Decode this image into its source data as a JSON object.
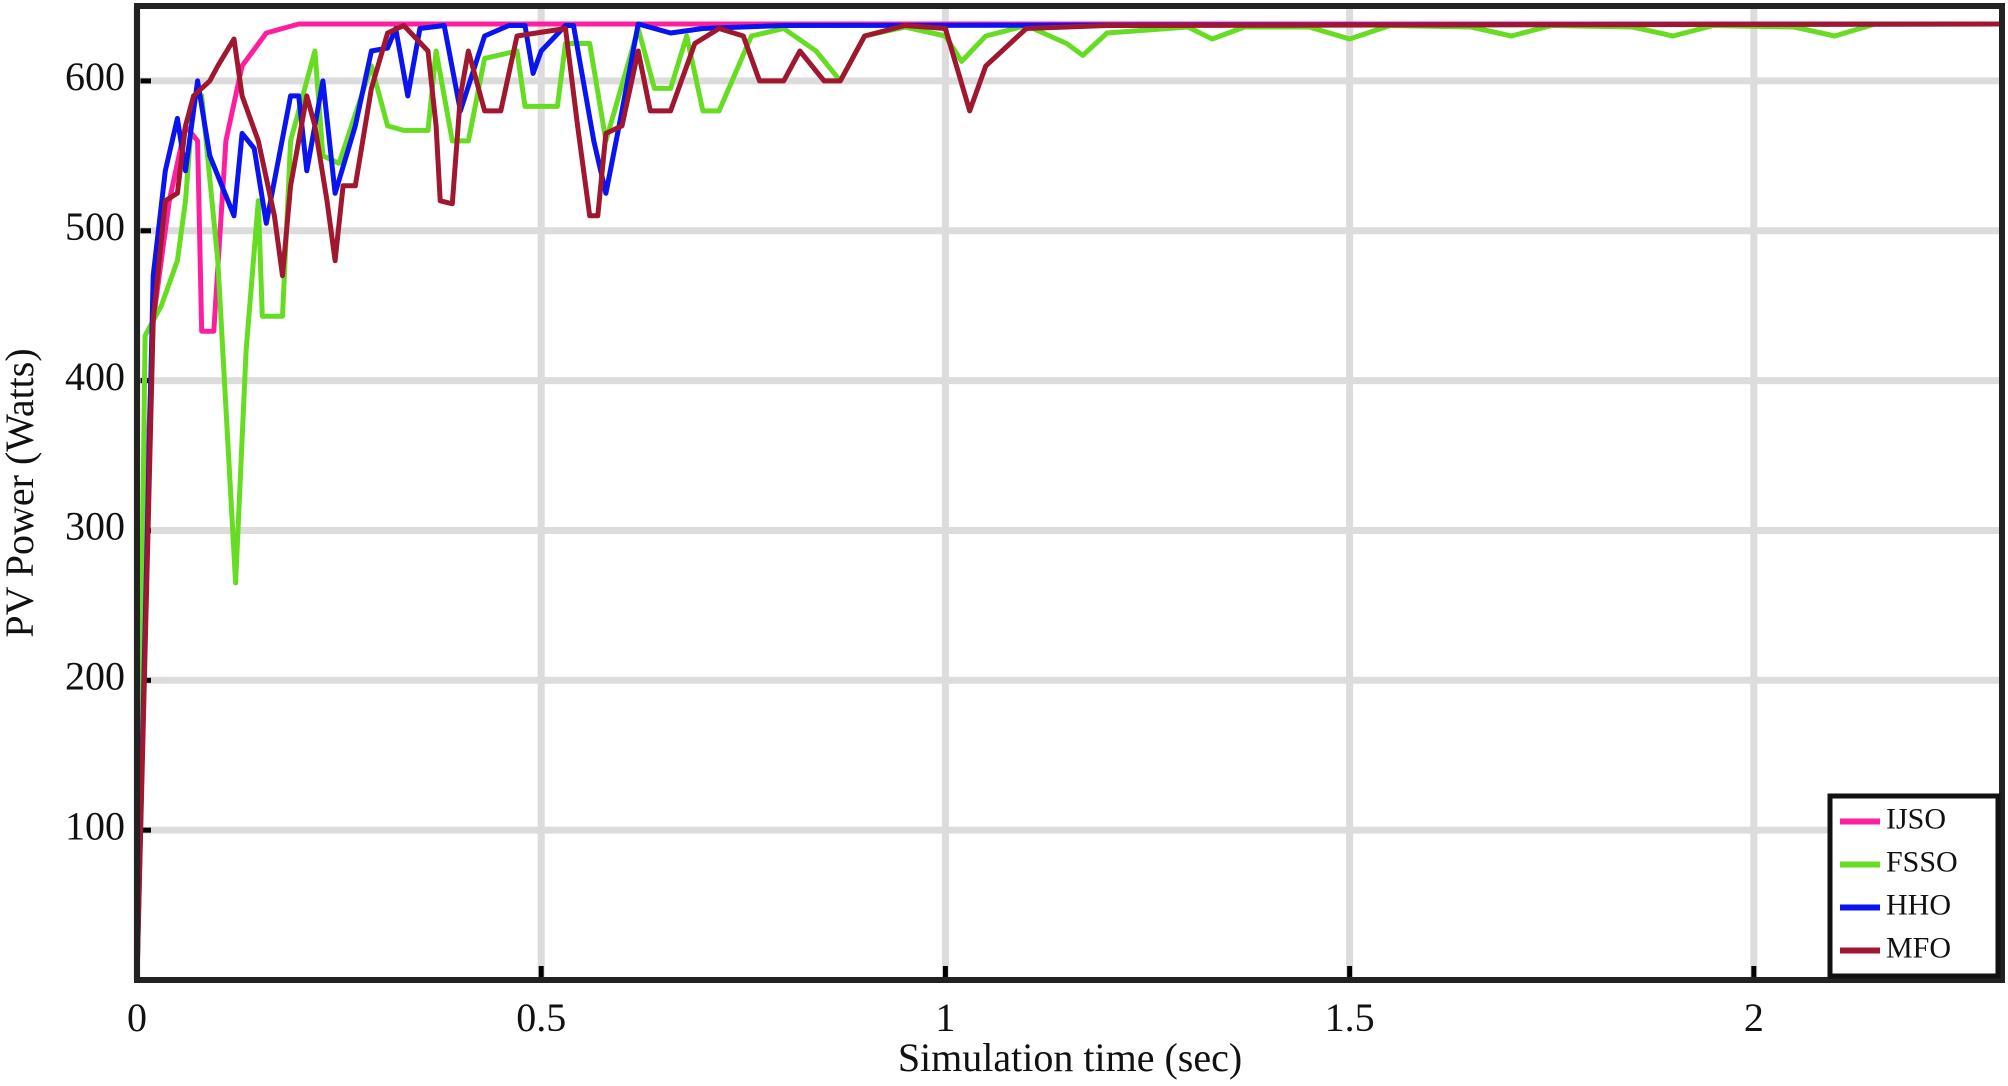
{
  "chart_data": {
    "type": "line",
    "xlabel": "Simulation time (sec)",
    "ylabel": "PV Power (Watts)",
    "xlim": [
      0,
      2.307
    ],
    "ylim": [
      0,
      650
    ],
    "xticks": [
      0,
      0.5,
      1,
      1.5,
      2
    ],
    "yticks": [
      100,
      200,
      300,
      400,
      500,
      600
    ],
    "grid": true,
    "legend": "lower right",
    "series": [
      {
        "name": "IJSO",
        "color": "#ff1f9e",
        "x": [
          0,
          0.01,
          0.02,
          0.04,
          0.06,
          0.075,
          0.08,
          0.095,
          0.11,
          0.13,
          0.16,
          0.2,
          2.307
        ],
        "values": [
          0,
          300,
          440,
          520,
          570,
          560,
          433,
          433,
          560,
          610,
          632,
          638,
          638
        ]
      },
      {
        "name": "FSSO",
        "color": "#66dd22",
        "x": [
          0,
          0.01,
          0.03,
          0.05,
          0.06,
          0.07,
          0.08,
          0.1,
          0.122,
          0.135,
          0.15,
          0.155,
          0.18,
          0.19,
          0.22,
          0.23,
          0.25,
          0.29,
          0.31,
          0.33,
          0.36,
          0.37,
          0.39,
          0.41,
          0.43,
          0.47,
          0.48,
          0.52,
          0.53,
          0.56,
          0.58,
          0.62,
          0.64,
          0.66,
          0.68,
          0.7,
          0.72,
          0.76,
          0.8,
          0.84,
          0.87,
          0.9,
          0.95,
          1.0,
          1.02,
          1.05,
          1.1,
          1.15,
          1.17,
          1.2,
          1.3,
          1.33,
          1.37,
          1.45,
          1.5,
          1.55,
          1.65,
          1.7,
          1.75,
          1.85,
          1.9,
          1.95,
          2.05,
          2.1,
          2.15,
          2.307
        ],
        "values": [
          0,
          430,
          450,
          480,
          520,
          590,
          590,
          480,
          265,
          420,
          520,
          443,
          443,
          560,
          620,
          550,
          545,
          610,
          570,
          567,
          567,
          620,
          560,
          560,
          615,
          620,
          583,
          583,
          625,
          625,
          560,
          635,
          595,
          595,
          630,
          580,
          580,
          630,
          635,
          620,
          600,
          630,
          636,
          630,
          613,
          630,
          637,
          625,
          617,
          632,
          636,
          628,
          636,
          636,
          628,
          637,
          636,
          630,
          637,
          636,
          630,
          637,
          636,
          630,
          638,
          638
        ]
      },
      {
        "name": "HHO",
        "color": "#0a14f0",
        "x": [
          0,
          0.02,
          0.035,
          0.05,
          0.06,
          0.075,
          0.09,
          0.12,
          0.13,
          0.145,
          0.16,
          0.19,
          0.2,
          0.21,
          0.23,
          0.245,
          0.27,
          0.29,
          0.31,
          0.32,
          0.335,
          0.35,
          0.38,
          0.4,
          0.43,
          0.46,
          0.48,
          0.49,
          0.5,
          0.53,
          0.54,
          0.565,
          0.58,
          0.6,
          0.62,
          0.66,
          0.7,
          0.8,
          2.307
        ],
        "values": [
          0,
          470,
          540,
          575,
          540,
          600,
          550,
          510,
          565,
          555,
          505,
          590,
          590,
          540,
          600,
          525,
          570,
          620,
          622,
          635,
          590,
          635,
          637,
          580,
          630,
          637,
          637,
          605,
          620,
          637,
          637,
          560,
          525,
          580,
          638,
          632,
          635,
          637,
          638
        ]
      },
      {
        "name": "MFO",
        "color": "#a01830",
        "x": [
          0,
          0.02,
          0.035,
          0.05,
          0.06,
          0.07,
          0.09,
          0.1,
          0.12,
          0.13,
          0.15,
          0.17,
          0.18,
          0.19,
          0.21,
          0.22,
          0.235,
          0.245,
          0.255,
          0.27,
          0.29,
          0.31,
          0.33,
          0.36,
          0.37,
          0.375,
          0.39,
          0.4,
          0.41,
          0.43,
          0.45,
          0.47,
          0.53,
          0.545,
          0.56,
          0.57,
          0.58,
          0.6,
          0.62,
          0.635,
          0.66,
          0.69,
          0.72,
          0.75,
          0.77,
          0.8,
          0.82,
          0.85,
          0.87,
          0.9,
          0.95,
          1.0,
          1.03,
          1.05,
          1.1,
          1.2,
          2.307
        ],
        "values": [
          0,
          440,
          520,
          525,
          570,
          590,
          600,
          610,
          628,
          590,
          560,
          510,
          470,
          530,
          590,
          570,
          520,
          480,
          530,
          530,
          595,
          632,
          637,
          620,
          570,
          520,
          518,
          590,
          620,
          580,
          580,
          630,
          635,
          570,
          510,
          510,
          565,
          570,
          620,
          580,
          580,
          625,
          635,
          630,
          600,
          600,
          620,
          600,
          600,
          630,
          637,
          635,
          580,
          610,
          635,
          637,
          638
        ]
      }
    ]
  }
}
